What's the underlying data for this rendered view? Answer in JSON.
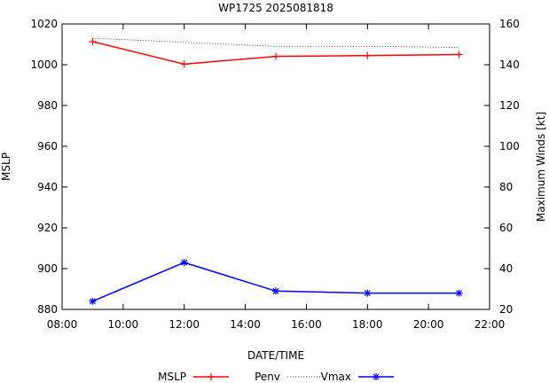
{
  "chart_data": {
    "type": "line",
    "title": "WP1725 2025081818",
    "xlabel": "DATE/TIME",
    "ylabel_left": "MSLP",
    "ylabel_right": "Maximum Winds [kt]",
    "x_range_hours": [
      8,
      22
    ],
    "x_tick_hours": [
      8,
      10,
      12,
      14,
      16,
      18,
      20,
      22
    ],
    "x_tick_labels": [
      "08:00",
      "10:00",
      "12:00",
      "14:00",
      "16:00",
      "18:00",
      "20:00",
      "22:00"
    ],
    "y_left_range": [
      880,
      1020
    ],
    "y_left_ticks": [
      880,
      900,
      920,
      940,
      960,
      980,
      1000,
      1020
    ],
    "y_right_range": [
      20,
      160
    ],
    "y_right_ticks": [
      20,
      40,
      60,
      80,
      100,
      120,
      140,
      160
    ],
    "x_hours": [
      9,
      12,
      15,
      18,
      21
    ],
    "grid": false,
    "legend_placement": "bottom",
    "series": [
      {
        "name": "MSLP",
        "axis": "left",
        "style": "solid-plus",
        "color": "#ff0000",
        "values": [
          1011.3,
          1000.3,
          1004.1,
          1004.5,
          1005.0
        ]
      },
      {
        "name": "Penv",
        "axis": "left",
        "style": "dotted",
        "color": "#000000",
        "values": [
          1013.0,
          1011.0,
          1009.0,
          1009.0,
          1008.5
        ]
      },
      {
        "name": "Vmax",
        "axis": "right",
        "style": "solid-star",
        "color": "#0000ff",
        "values": [
          24,
          43,
          29,
          28,
          28
        ]
      }
    ]
  }
}
